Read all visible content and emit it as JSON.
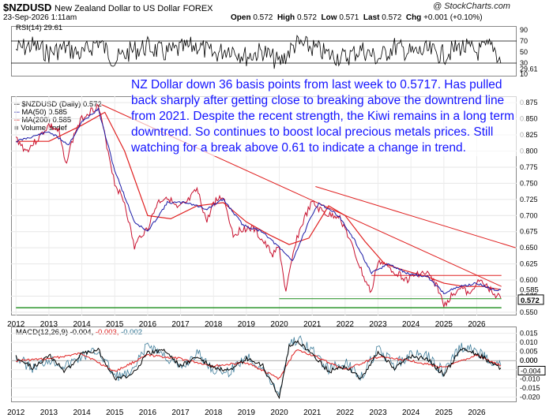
{
  "header": {
    "symbol": "$NZDUSD",
    "description": "New Zealand Dollar to US Dollar",
    "exchange": "FOREX",
    "datetime": "23-Sep-2026 1:11am",
    "open_label": "Open",
    "open": "0.572",
    "high_label": "High",
    "high": "0.572",
    "low_label": "Low",
    "low": "0.571",
    "last_label": "Last",
    "last": "0.572",
    "chg_label": "Chg",
    "chg": "+0.001 (+0.10%)",
    "credit": "@ StockCharts.com"
  },
  "annotation": "NZ Dollar down 36 basis points from last week to 0.5717. Has pulled back sharply after getting close to breaking above the downtrend line from 2021. Despite the recent strength, the Kiwi remains in a long term downtrend. So continues to boost local precious metals prices. Still watching for a break above 0.61 to indicate a change in trend.",
  "colors": {
    "price": "#c8102e",
    "ma50": "#1a1aa6",
    "ma200": "#e02020",
    "support": "#1a8c1a",
    "macd": "#000000",
    "signal": "#e02020",
    "hist": "#2a6f8f",
    "annotation": "#1414ff"
  },
  "chart_data": [
    {
      "type": "line",
      "panel": "RSI",
      "legend": "RSI(14) 29.61",
      "last_value_tag": "29.61",
      "yticks": [
        "90",
        "70",
        "50",
        "30",
        "10"
      ],
      "ylim": [
        10,
        90
      ],
      "guide_levels": [
        70,
        30
      ],
      "x": [
        2012,
        2012.5,
        2013,
        2013.5,
        2014,
        2014.5,
        2015,
        2015.5,
        2016,
        2016.5,
        2017,
        2017.5,
        2018,
        2018.5,
        2019,
        2019.5,
        2020,
        2020.5,
        2021,
        2021.5,
        2022,
        2022.5,
        2023,
        2023.5,
        2024,
        2024.5,
        2025,
        2025.5,
        2026,
        2026.5,
        2026.73
      ],
      "values": [
        55,
        62,
        48,
        58,
        45,
        70,
        35,
        52,
        60,
        48,
        55,
        62,
        45,
        58,
        42,
        52,
        30,
        65,
        58,
        45,
        40,
        55,
        38,
        60,
        48,
        52,
        45,
        60,
        50,
        62,
        30
      ]
    },
    {
      "type": "line",
      "panel": "Price",
      "legend": [
        "$NZDUSD (Daily) 0.572",
        "MA(50) 0.585",
        "MA(200) 0.585",
        "Volume undef"
      ],
      "xticks": [
        "2012",
        "2013",
        "2014",
        "2015",
        "2016",
        "2017",
        "2018",
        "2019",
        "2020",
        "2021",
        "2022",
        "2023",
        "2024",
        "2025",
        "2026"
      ],
      "yticks": [
        "0.875",
        "0.850",
        "0.825",
        "0.800",
        "0.775",
        "0.750",
        "0.725",
        "0.700",
        "0.675",
        "0.650",
        "0.625",
        "0.600",
        "0.575",
        "0.550"
      ],
      "ylim": [
        0.545,
        0.885
      ],
      "last_value_tags": [
        "0.585",
        "0.572"
      ],
      "series": [
        {
          "name": "$NZDUSD",
          "x": [
            2012,
            2012.3,
            2012.6,
            2013,
            2013.3,
            2013.5,
            2013.8,
            2014,
            2014.2,
            2014.5,
            2014.8,
            2015,
            2015.3,
            2015.6,
            2015.8,
            2016,
            2016.3,
            2016.6,
            2016.9,
            2017.2,
            2017.5,
            2017.8,
            2018,
            2018.3,
            2018.6,
            2018.9,
            2019.2,
            2019.5,
            2019.8,
            2020,
            2020.2,
            2020.5,
            2020.8,
            2021,
            2021.2,
            2021.5,
            2021.8,
            2022,
            2022.3,
            2022.6,
            2022.8,
            2023,
            2023.3,
            2023.6,
            2023.9,
            2024.2,
            2024.5,
            2024.8,
            2025,
            2025.3,
            2025.5,
            2025.8,
            2026,
            2026.3,
            2026.5,
            2026.73
          ],
          "values": [
            0.82,
            0.8,
            0.815,
            0.84,
            0.83,
            0.78,
            0.83,
            0.85,
            0.86,
            0.87,
            0.8,
            0.75,
            0.72,
            0.65,
            0.67,
            0.68,
            0.72,
            0.73,
            0.71,
            0.72,
            0.74,
            0.69,
            0.72,
            0.73,
            0.67,
            0.68,
            0.68,
            0.66,
            0.64,
            0.65,
            0.58,
            0.66,
            0.7,
            0.72,
            0.71,
            0.7,
            0.7,
            0.68,
            0.64,
            0.6,
            0.58,
            0.63,
            0.62,
            0.61,
            0.6,
            0.61,
            0.61,
            0.59,
            0.56,
            0.58,
            0.59,
            0.575,
            0.6,
            0.59,
            0.58,
            0.572
          ]
        },
        {
          "name": "MA(50)",
          "x": [
            2012,
            2013,
            2013.6,
            2014,
            2014.5,
            2015,
            2015.6,
            2016,
            2016.6,
            2017.2,
            2017.8,
            2018.3,
            2018.9,
            2019.5,
            2020,
            2020.4,
            2020.9,
            2021.2,
            2021.8,
            2022.3,
            2022.8,
            2023.3,
            2023.9,
            2024.5,
            2025,
            2025.5,
            2026,
            2026.5,
            2026.73
          ],
          "values": [
            0.815,
            0.83,
            0.81,
            0.845,
            0.865,
            0.77,
            0.69,
            0.675,
            0.72,
            0.72,
            0.71,
            0.725,
            0.685,
            0.675,
            0.65,
            0.63,
            0.69,
            0.72,
            0.7,
            0.66,
            0.61,
            0.625,
            0.61,
            0.605,
            0.58,
            0.59,
            0.595,
            0.585,
            0.585
          ]
        },
        {
          "name": "MA(200)",
          "x": [
            2012,
            2013,
            2014,
            2014.7,
            2015.3,
            2016,
            2016.7,
            2017.5,
            2018.3,
            2019,
            2019.7,
            2020.3,
            2020.9,
            2021.5,
            2022,
            2022.6,
            2023.2,
            2023.8,
            2024.5,
            2025,
            2025.6,
            2026.2,
            2026.73
          ],
          "values": [
            0.815,
            0.815,
            0.84,
            0.86,
            0.8,
            0.7,
            0.695,
            0.715,
            0.72,
            0.69,
            0.67,
            0.655,
            0.665,
            0.715,
            0.7,
            0.66,
            0.625,
            0.615,
            0.605,
            0.595,
            0.59,
            0.59,
            0.585
          ]
        }
      ],
      "trend_lines": [
        {
          "from": [
            2014.6,
            0.872
          ],
          "to": [
            2026.75,
            0.59
          ]
        },
        {
          "from": [
            2021.1,
            0.745
          ],
          "to": [
            2026.75,
            0.65
          ]
        },
        {
          "from": [
            2020,
            0.571
          ],
          "to": [
            2026.75,
            0.571
          ]
        },
        {
          "from": [
            2012,
            0.557
          ],
          "to": [
            2026.75,
            0.557
          ]
        },
        {
          "from": [
            2022.8,
            0.607
          ],
          "to": [
            2026.75,
            0.607
          ]
        }
      ]
    },
    {
      "type": "line",
      "panel": "MACD",
      "legend": [
        "MACD(12,26,9)",
        "-0.004,",
        "-0.003,",
        "-0.002"
      ],
      "xticks": [
        "2012",
        "2013",
        "2014",
        "2015",
        "2016",
        "2017",
        "2018",
        "2019",
        "2020",
        "2021",
        "2022",
        "2023",
        "2024",
        "2025",
        "2026"
      ],
      "yticks": [
        "0.015",
        "0.010",
        "0.005",
        "0.000",
        "-0.005",
        "-0.010",
        "-0.015",
        "-0.020"
      ],
      "ylim": [
        -0.022,
        0.017
      ],
      "last_value_tags": [
        "0.000",
        "-0.004"
      ],
      "series": [
        {
          "name": "MACD",
          "x": [
            2012,
            2012.5,
            2013,
            2013.5,
            2014,
            2014.5,
            2015,
            2015.5,
            2016,
            2016.5,
            2017,
            2017.5,
            2018,
            2018.5,
            2019,
            2019.5,
            2020,
            2020.3,
            2020.6,
            2021,
            2021.5,
            2022,
            2022.5,
            2023,
            2023.5,
            2024,
            2024.5,
            2025,
            2025.5,
            2026,
            2026.5,
            2026.73
          ],
          "values": [
            0.002,
            -0.004,
            0.003,
            -0.006,
            0.004,
            0.006,
            -0.01,
            -0.008,
            0.004,
            0.006,
            -0.003,
            0.002,
            -0.004,
            -0.006,
            0.001,
            -0.003,
            -0.02,
            0.008,
            0.01,
            0.004,
            -0.006,
            -0.003,
            -0.01,
            0.005,
            -0.004,
            0.002,
            0.001,
            -0.008,
            0.006,
            0.004,
            -0.002,
            -0.004
          ]
        },
        {
          "name": "Signal",
          "x": [
            2012,
            2013,
            2014,
            2015,
            2016,
            2017,
            2018,
            2019,
            2020,
            2020.5,
            2021,
            2022,
            2023,
            2024,
            2025,
            2026,
            2026.73
          ],
          "values": [
            0.0,
            0.001,
            0.004,
            -0.006,
            0.003,
            0.001,
            -0.003,
            -0.001,
            -0.01,
            0.006,
            0.003,
            -0.005,
            0.002,
            0.0,
            -0.004,
            0.003,
            -0.003
          ]
        }
      ]
    }
  ]
}
